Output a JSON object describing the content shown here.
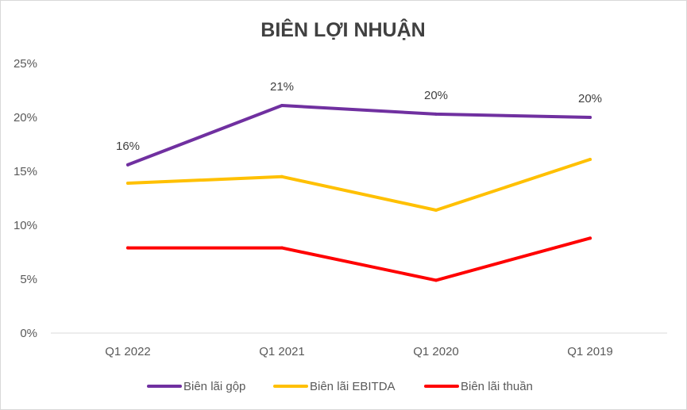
{
  "chart_data": {
    "type": "line",
    "title": "BIÊN LỢI NHUẬN",
    "categories": [
      "Q1 2022",
      "Q1 2021",
      "Q1 2020",
      "Q1 2019"
    ],
    "ylim": [
      0,
      25
    ],
    "yticks": [
      0,
      5,
      10,
      15,
      20,
      25
    ],
    "ytick_labels": [
      "0%",
      "5%",
      "10%",
      "15%",
      "20%",
      "25%"
    ],
    "grid": false,
    "legend_position": "bottom",
    "series": [
      {
        "name": "Biên lãi gộp",
        "color": "#7030a0",
        "values": [
          15.6,
          21.1,
          20.3,
          20.0
        ],
        "labels": [
          "16%",
          "21%",
          "20%",
          "20%"
        ]
      },
      {
        "name": "Biên lãi EBITDA",
        "color": "#ffc000",
        "values": [
          13.9,
          14.5,
          11.4,
          16.1
        ]
      },
      {
        "name": "Biên lãi thuần",
        "color": "#ff0000",
        "values": [
          7.9,
          7.9,
          4.9,
          8.8
        ]
      }
    ]
  }
}
